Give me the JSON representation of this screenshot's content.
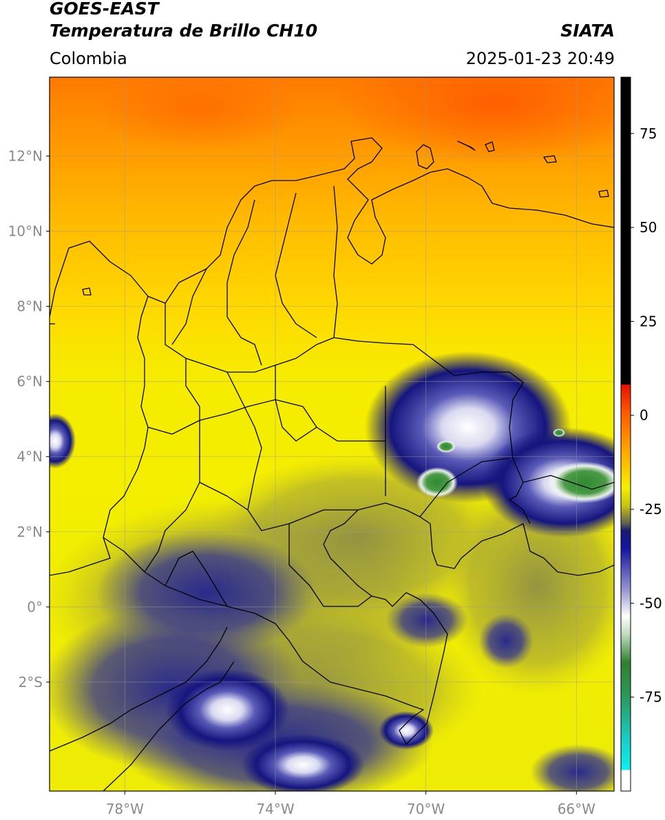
{
  "header": {
    "satellite": "GOES-EAST",
    "product": "Temperatura de Brillo CH10",
    "region": "Colombia",
    "agency": "SIATA",
    "datetime": "2025-01-23 20:49"
  },
  "map": {
    "lon_range": [
      -80,
      -65
    ],
    "lat_range": [
      -4.9,
      14.1
    ],
    "lon_ticks": [
      {
        "value": -78,
        "label": "78°W"
      },
      {
        "value": -74,
        "label": "74°W"
      },
      {
        "value": -70,
        "label": "70°W"
      },
      {
        "value": -66,
        "label": "66°W"
      }
    ],
    "lat_ticks": [
      {
        "value": 12,
        "label": "12°N"
      },
      {
        "value": 10,
        "label": "10°N"
      },
      {
        "value": 8,
        "label": "8°N"
      },
      {
        "value": 6,
        "label": "6°N"
      },
      {
        "value": 4,
        "label": "4°N"
      },
      {
        "value": 2,
        "label": "2°N"
      },
      {
        "value": 0,
        "label": "0°"
      },
      {
        "value": -2,
        "label": "2°S"
      }
    ],
    "grid": true
  },
  "colorbar": {
    "range": [
      -100,
      90
    ],
    "ticks": [
      {
        "value": 75,
        "label": "75"
      },
      {
        "value": 50,
        "label": "50"
      },
      {
        "value": 25,
        "label": "25"
      },
      {
        "value": 0,
        "label": "0"
      },
      {
        "value": -25,
        "label": "-25"
      },
      {
        "value": -50,
        "label": "-50"
      },
      {
        "value": -75,
        "label": "-75"
      }
    ],
    "colors": {
      "black": "#000000",
      "red": "#ff1a00",
      "orange": "#ff9900",
      "yellow": "#f5f000",
      "olive": "#8a8a40",
      "navy": "#10107a",
      "white": "#ffffff",
      "green": "#2f8a30",
      "cyan": "#12e0e0"
    }
  }
}
